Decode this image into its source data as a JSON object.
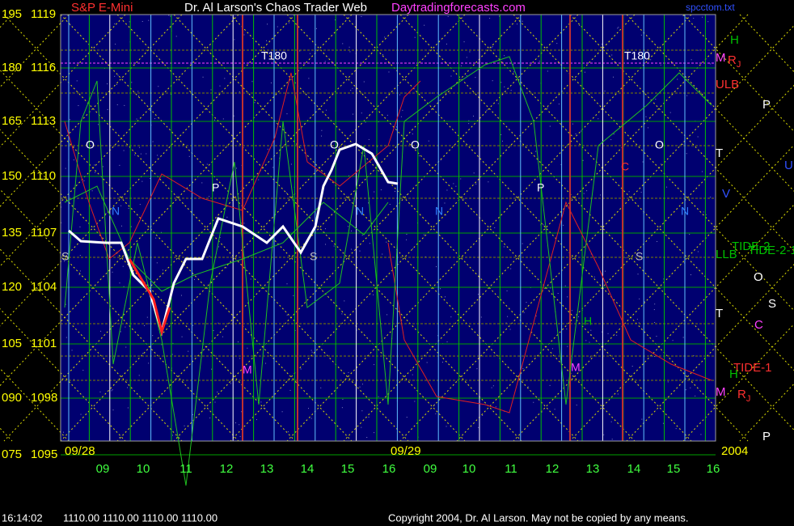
{
  "header": {
    "symbol": "S&P E-Mini",
    "title": "Dr. Al Larson's Chaos Trader Web",
    "site": "Daytradingforecasts.com",
    "file": "spcctom.txt"
  },
  "y_axis": {
    "left": [
      "195",
      "180",
      "165",
      "150",
      "135",
      "120",
      "105",
      "090",
      "075"
    ],
    "right": [
      "1119",
      "1116",
      "1113",
      "1110",
      "1107",
      "1104",
      "1101",
      "1098",
      "1095"
    ]
  },
  "x_axis": {
    "hours": [
      "09",
      "10",
      "11",
      "12",
      "13",
      "14",
      "15",
      "16",
      "09",
      "10",
      "11",
      "12",
      "13",
      "14",
      "15",
      "16"
    ],
    "dates": [
      "09/28",
      "09/29"
    ],
    "year": "2004"
  },
  "right_labels": [
    {
      "text": "H",
      "color": "#00c000"
    },
    {
      "text": "M",
      "color": "#ff40ff"
    },
    {
      "text": "R",
      "sub": "J",
      "color": "#ff3030"
    },
    {
      "text": "ULB",
      "color": "#ff3030"
    },
    {
      "text": "P",
      "color": "#ffffff"
    },
    {
      "text": "T",
      "color": "#ffffff"
    },
    {
      "text": "U",
      "color": "#3050ff"
    },
    {
      "text": "V",
      "color": "#3050ff"
    },
    {
      "text": "TIDE-2",
      "color": "#00c000"
    },
    {
      "text": "TIDE-2-1",
      "color": "#00c000"
    },
    {
      "text": "LLB",
      "color": "#00c000"
    },
    {
      "text": "O",
      "color": "#ffffff"
    },
    {
      "text": "S",
      "color": "#ffffff"
    },
    {
      "text": "T",
      "color": "#ffffff"
    },
    {
      "text": "C",
      "color": "#ff40ff"
    },
    {
      "text": "TIDE-1",
      "color": "#ff3030"
    },
    {
      "text": "H",
      "color": "#00c000"
    },
    {
      "text": "M",
      "color": "#ff40ff"
    },
    {
      "text": "R",
      "sub": "J",
      "color": "#ff3030"
    },
    {
      "text": "P",
      "color": "#ffffff"
    }
  ],
  "plot_labels": [
    {
      "text": "T180",
      "color": "#ffffff"
    },
    {
      "text": "T180",
      "color": "#ffffff"
    },
    {
      "text": "O",
      "color": "#ffffff"
    },
    {
      "text": "O",
      "color": "#ffffff"
    },
    {
      "text": "O",
      "color": "#ffffff"
    },
    {
      "text": "O",
      "color": "#ffffff"
    },
    {
      "text": "N",
      "color": "#3080ff"
    },
    {
      "text": "N",
      "color": "#3080ff"
    },
    {
      "text": "N",
      "color": "#3080ff"
    },
    {
      "text": "N",
      "color": "#3080ff"
    },
    {
      "text": "P",
      "color": "#ffffff"
    },
    {
      "text": "P",
      "color": "#ffffff"
    },
    {
      "text": "S",
      "color": "#c0c0c0"
    },
    {
      "text": "S",
      "color": "#c0c0c0"
    },
    {
      "text": "S",
      "color": "#c0c0c0"
    },
    {
      "text": "M",
      "color": "#ff40ff"
    },
    {
      "text": "M",
      "color": "#ff40ff"
    },
    {
      "text": "H",
      "color": "#00c000"
    },
    {
      "text": "C",
      "color": "#ff3030"
    }
  ],
  "footer": {
    "time": "16:14:02",
    "prices": "1110.00 1110.00 1110.00 1110.00",
    "copyright": "Copyright 2004, Dr. Al Larson. May not be copied by any means."
  }
}
